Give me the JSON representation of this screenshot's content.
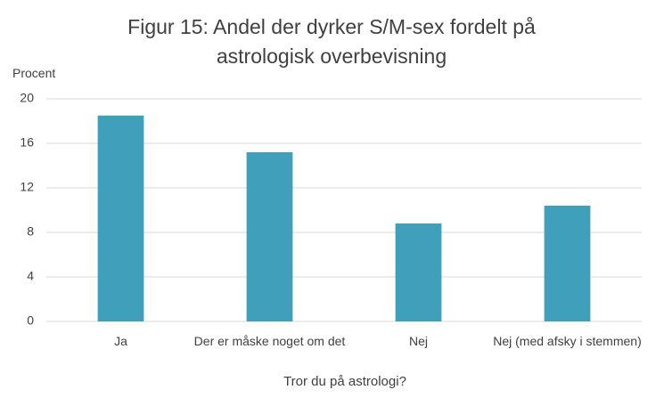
{
  "chart_data": {
    "type": "bar",
    "title": "Figur 15: Andel der dyrker S/M-sex fordelt på astrologisk overbevisning",
    "y_label": "Procent",
    "x_label": "Tror du på astrologi?",
    "categories": [
      "Ja",
      "Der er måske noget om det",
      "Nej",
      "Nej (med afsky i stemmen)"
    ],
    "values": [
      18.5,
      15.2,
      8.8,
      10.4
    ],
    "color": "#409fba",
    "ylim": [
      0,
      20
    ],
    "yticks": [
      0,
      4,
      8,
      12,
      16,
      20
    ],
    "grid": true
  }
}
